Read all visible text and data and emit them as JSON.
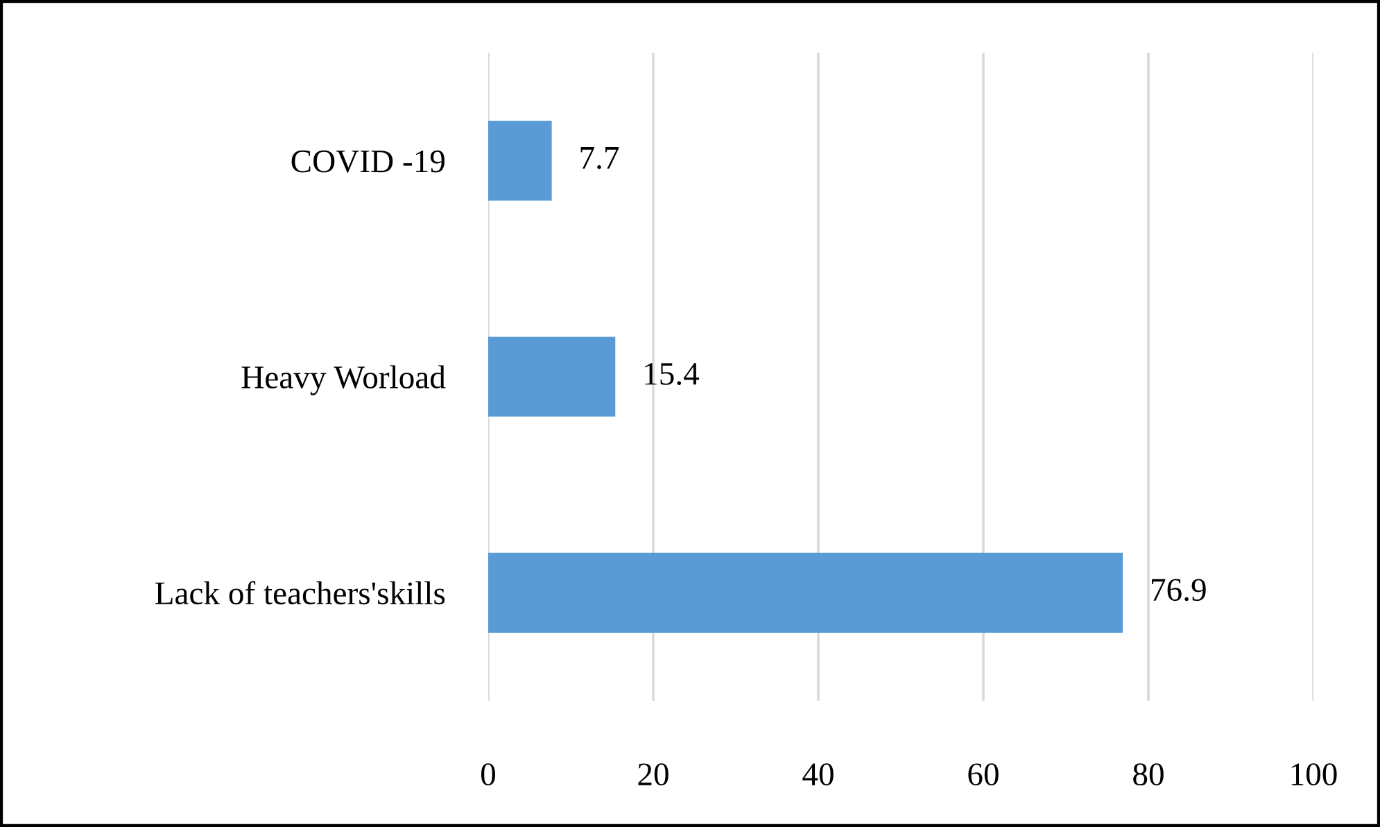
{
  "chart_data": {
    "type": "bar",
    "orientation": "horizontal",
    "categories": [
      "COVID -19",
      "Heavy Worload",
      "Lack of teachers'skills"
    ],
    "values": [
      7.7,
      15.4,
      76.9
    ],
    "color": "#5b9bd5",
    "xlim": [
      0,
      100
    ],
    "xticks": [
      0,
      20,
      40,
      60,
      80,
      100
    ],
    "grid": "x",
    "data_labels": true,
    "legend": false
  }
}
